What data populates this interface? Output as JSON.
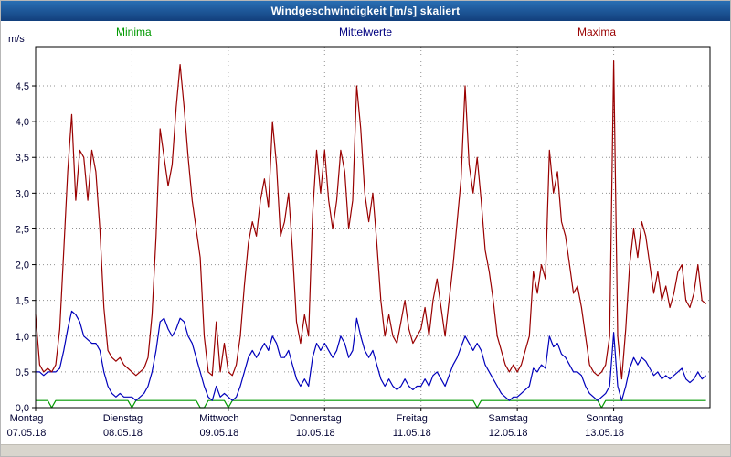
{
  "window": {
    "title": "Windgeschwindigkeit [m/s] skaliert"
  },
  "axis": {
    "unit_label": "m/s"
  },
  "chart_data": {
    "type": "line",
    "title": "Windgeschwindigkeit [m/s] skaliert",
    "ylabel": "m/s",
    "ylim": [
      0,
      5.05
    ],
    "grid": "dotted",
    "legend_position": "top",
    "points_per_day": 24,
    "y_tick_values": [
      0,
      0.5,
      1.0,
      1.5,
      2.0,
      2.5,
      3.0,
      3.5,
      4.0,
      4.5
    ],
    "y_tick_labels": [
      "0,0",
      "0,5",
      "1,0",
      "1,5",
      "2,0",
      "2,5",
      "3,0",
      "3,5",
      "4,0",
      "4,5"
    ],
    "days": [
      {
        "name": "Montag",
        "date": "07.05.18"
      },
      {
        "name": "Dienstag",
        "date": "08.05.18"
      },
      {
        "name": "Mittwoch",
        "date": "09.05.18"
      },
      {
        "name": "Donnerstag",
        "date": "10.05.18"
      },
      {
        "name": "Freitag",
        "date": "11.05.18"
      },
      {
        "name": "Samstag",
        "date": "12.05.18"
      },
      {
        "name": "Sonntag",
        "date": "13.05.18"
      }
    ],
    "series": [
      {
        "name": "Minima",
        "color": "#009900",
        "values": [
          0.1,
          0.1,
          0.1,
          0.1,
          0.0,
          0.1,
          0.1,
          0.1,
          0.1,
          0.1,
          0.1,
          0.1,
          0.1,
          0.1,
          0.1,
          0.1,
          0.1,
          0.1,
          0.1,
          0.1,
          0.1,
          0.1,
          0.1,
          0.1,
          0.0,
          0.1,
          0.1,
          0.1,
          0.1,
          0.1,
          0.1,
          0.1,
          0.1,
          0.1,
          0.1,
          0.1,
          0.1,
          0.1,
          0.1,
          0.1,
          0.1,
          0.0,
          0.0,
          0.1,
          0.1,
          0.1,
          0.1,
          0.1,
          0.0,
          0.1,
          0.1,
          0.1,
          0.1,
          0.1,
          0.1,
          0.1,
          0.1,
          0.1,
          0.1,
          0.1,
          0.1,
          0.1,
          0.1,
          0.1,
          0.1,
          0.1,
          0.1,
          0.1,
          0.1,
          0.1,
          0.1,
          0.1,
          0.1,
          0.1,
          0.1,
          0.1,
          0.1,
          0.1,
          0.1,
          0.1,
          0.1,
          0.1,
          0.1,
          0.1,
          0.1,
          0.1,
          0.1,
          0.1,
          0.1,
          0.1,
          0.1,
          0.1,
          0.1,
          0.1,
          0.1,
          0.1,
          0.1,
          0.1,
          0.1,
          0.1,
          0.1,
          0.1,
          0.1,
          0.1,
          0.1,
          0.1,
          0.1,
          0.1,
          0.1,
          0.1,
          0.0,
          0.1,
          0.1,
          0.1,
          0.1,
          0.1,
          0.1,
          0.1,
          0.1,
          0.1,
          0.1,
          0.1,
          0.1,
          0.1,
          0.1,
          0.1,
          0.1,
          0.1,
          0.1,
          0.1,
          0.1,
          0.1,
          0.1,
          0.1,
          0.1,
          0.1,
          0.1,
          0.1,
          0.1,
          0.1,
          0.1,
          0.0,
          0.1,
          0.1,
          0.1,
          0.1,
          0.1,
          0.1,
          0.1,
          0.1,
          0.1,
          0.1,
          0.1,
          0.1,
          0.1,
          0.1,
          0.1,
          0.1,
          0.1,
          0.1,
          0.1,
          0.1,
          0.1,
          0.1,
          0.1,
          0.1,
          0.1,
          0.1
        ]
      },
      {
        "name": "Mittelwerte",
        "color": "#0000bb",
        "values": [
          0.5,
          0.5,
          0.45,
          0.5,
          0.5,
          0.5,
          0.55,
          0.8,
          1.1,
          1.35,
          1.3,
          1.2,
          1.0,
          0.95,
          0.9,
          0.9,
          0.8,
          0.5,
          0.3,
          0.2,
          0.15,
          0.2,
          0.15,
          0.15,
          0.15,
          0.1,
          0.15,
          0.2,
          0.3,
          0.5,
          0.8,
          1.2,
          1.25,
          1.1,
          1.0,
          1.1,
          1.25,
          1.2,
          1.0,
          0.9,
          0.7,
          0.5,
          0.3,
          0.15,
          0.1,
          0.3,
          0.15,
          0.2,
          0.15,
          0.1,
          0.15,
          0.3,
          0.5,
          0.7,
          0.8,
          0.7,
          0.8,
          0.9,
          0.8,
          1.0,
          0.9,
          0.7,
          0.7,
          0.8,
          0.6,
          0.4,
          0.3,
          0.4,
          0.3,
          0.7,
          0.9,
          0.8,
          0.9,
          0.8,
          0.7,
          0.8,
          1.0,
          0.9,
          0.7,
          0.8,
          1.25,
          1.0,
          0.8,
          0.7,
          0.8,
          0.6,
          0.4,
          0.3,
          0.4,
          0.3,
          0.25,
          0.3,
          0.4,
          0.3,
          0.25,
          0.3,
          0.3,
          0.4,
          0.3,
          0.45,
          0.5,
          0.4,
          0.3,
          0.45,
          0.6,
          0.7,
          0.85,
          1.0,
          0.9,
          0.8,
          0.9,
          0.8,
          0.6,
          0.5,
          0.4,
          0.3,
          0.2,
          0.15,
          0.1,
          0.15,
          0.15,
          0.2,
          0.25,
          0.3,
          0.55,
          0.5,
          0.6,
          0.55,
          1.0,
          0.85,
          0.9,
          0.75,
          0.7,
          0.6,
          0.5,
          0.5,
          0.45,
          0.3,
          0.2,
          0.15,
          0.1,
          0.15,
          0.2,
          0.3,
          1.05,
          0.3,
          0.1,
          0.3,
          0.55,
          0.7,
          0.6,
          0.7,
          0.65,
          0.55,
          0.45,
          0.5,
          0.4,
          0.45,
          0.4,
          0.45,
          0.5,
          0.55,
          0.4,
          0.35,
          0.4,
          0.5,
          0.4,
          0.45
        ]
      },
      {
        "name": "Maxima",
        "color": "#990000",
        "values": [
          1.3,
          0.6,
          0.5,
          0.55,
          0.5,
          0.6,
          1.1,
          2.2,
          3.3,
          4.1,
          2.9,
          3.6,
          3.5,
          2.9,
          3.6,
          3.3,
          2.5,
          1.4,
          0.8,
          0.7,
          0.65,
          0.7,
          0.6,
          0.55,
          0.5,
          0.45,
          0.5,
          0.55,
          0.7,
          1.3,
          2.4,
          3.9,
          3.5,
          3.1,
          3.4,
          4.2,
          4.8,
          4.2,
          3.5,
          2.9,
          2.5,
          2.1,
          1.0,
          0.5,
          0.45,
          1.2,
          0.5,
          0.9,
          0.5,
          0.45,
          0.6,
          1.0,
          1.7,
          2.3,
          2.6,
          2.4,
          2.9,
          3.2,
          2.8,
          4.0,
          3.4,
          2.4,
          2.6,
          3.0,
          2.2,
          1.2,
          0.9,
          1.3,
          1.0,
          2.7,
          3.6,
          3.0,
          3.6,
          2.9,
          2.5,
          2.9,
          3.6,
          3.3,
          2.5,
          2.9,
          4.5,
          3.9,
          3.0,
          2.6,
          3.0,
          2.3,
          1.5,
          1.0,
          1.3,
          1.0,
          0.9,
          1.2,
          1.5,
          1.1,
          0.9,
          1.0,
          1.1,
          1.4,
          1.0,
          1.5,
          1.8,
          1.4,
          1.0,
          1.5,
          2.0,
          2.6,
          3.2,
          4.5,
          3.4,
          3.0,
          3.5,
          2.9,
          2.2,
          1.9,
          1.5,
          1.0,
          0.8,
          0.6,
          0.5,
          0.6,
          0.5,
          0.6,
          0.8,
          1.0,
          1.9,
          1.6,
          2.0,
          1.8,
          3.6,
          3.0,
          3.3,
          2.6,
          2.4,
          2.0,
          1.6,
          1.7,
          1.4,
          1.0,
          0.6,
          0.5,
          0.45,
          0.5,
          0.6,
          1.0,
          4.85,
          1.0,
          0.4,
          1.1,
          2.0,
          2.5,
          2.1,
          2.6,
          2.4,
          2.0,
          1.6,
          1.9,
          1.5,
          1.7,
          1.4,
          1.6,
          1.9,
          2.0,
          1.5,
          1.4,
          1.6,
          2.0,
          1.5,
          1.45
        ]
      }
    ]
  }
}
